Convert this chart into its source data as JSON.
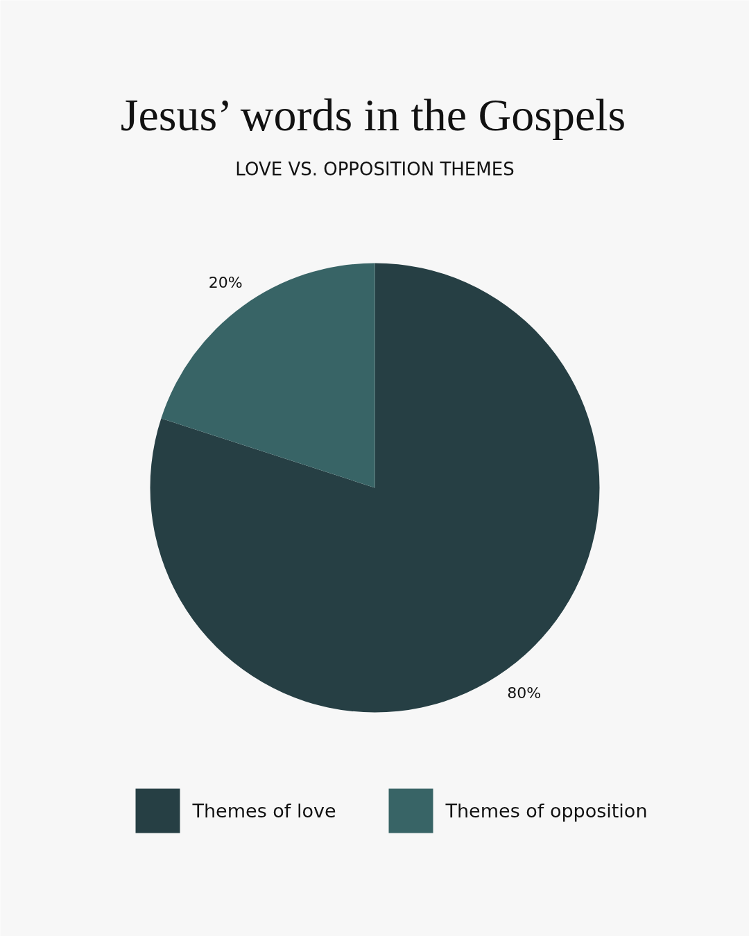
{
  "chart_data": {
    "type": "pie",
    "title": "Jesus’ words in the Gospels",
    "subtitle": "LOVE VS. OPPOSITION THEMES",
    "categories": [
      "Themes of love",
      "Themes of opposition"
    ],
    "values": [
      80,
      20
    ],
    "colors": [
      "#263f44",
      "#386466"
    ],
    "value_labels": [
      "80%",
      "20%"
    ],
    "legend": "bottom"
  }
}
